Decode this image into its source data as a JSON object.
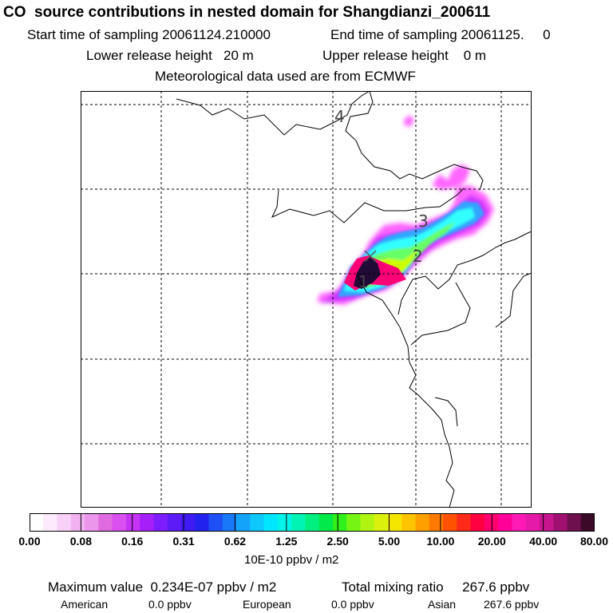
{
  "title": "CO  source contributions in nested domain for Shangdianzi_200611",
  "sampling": {
    "start": "Start time of sampling 20061124.210000",
    "end": "End time of sampling 20061125.     0"
  },
  "release": {
    "lower": "Lower release height   20 m",
    "upper": "Upper release height    0 m"
  },
  "met_note": "Meteorological data used are from ECMWF",
  "map": {
    "point_labels": [
      "4",
      "3",
      "2",
      "1"
    ],
    "plume_colors": [
      "#ff66ff",
      "#cc33ff",
      "#33a6ff",
      "#33ffff",
      "#66ff66",
      "#ccff00",
      "#ff0077",
      "#220a36"
    ],
    "grid": "dashed"
  },
  "colorbar": {
    "colors": [
      "#ffffff",
      "#fdeafd",
      "#f8d0f8",
      "#f2b2f2",
      "#eb95eb",
      "#e06be0",
      "#d94fef",
      "#c533f5",
      "#a61ff9",
      "#7e1dfb",
      "#5d1cf7",
      "#3f1af2",
      "#2222ee",
      "#1e50f5",
      "#1878f8",
      "#13a3fb",
      "#0ec8fd",
      "#00e6ff",
      "#00f5e8",
      "#00f5b4",
      "#00f080",
      "#00ea4a",
      "#2ff01a",
      "#76f515",
      "#b0f512",
      "#dcf00d",
      "#f5e600",
      "#ffc400",
      "#ff9f00",
      "#ff7a00",
      "#ff5200",
      "#ff2a1a",
      "#ff0040",
      "#ff0070",
      "#ff0098",
      "#ff1ab8",
      "#e61aa8",
      "#c81590",
      "#a01070",
      "#6e0f4e",
      "#3a0a28"
    ],
    "tick_labels": [
      "0.00",
      "0.08",
      "0.16",
      "0.31",
      "0.62",
      "1.25",
      "2.50",
      "5.00",
      "10.00",
      "20.00",
      "40.00",
      "80.00"
    ],
    "unit": "10E-10 ppbv / m2"
  },
  "summary": {
    "max_value": "Maximum value  0.234E-07 ppbv / m2",
    "total": "Total mixing ratio     267.6 ppbv",
    "american_label": "American",
    "american_value": "0.0 ppbv",
    "european_label": "European",
    "european_value": "0.0 ppbv",
    "asian_label": "Asian",
    "asian_value": "267.6 ppbv"
  }
}
